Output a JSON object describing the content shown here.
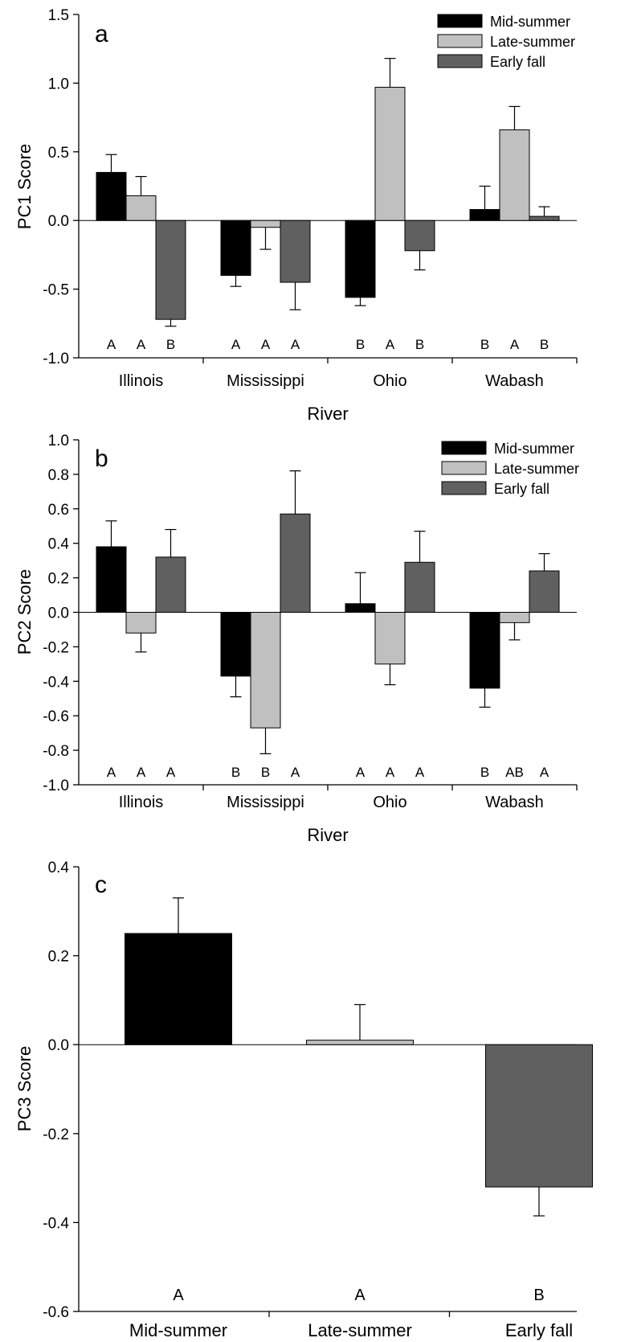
{
  "chart_data": [
    {
      "type": "bar",
      "panel_label": "a",
      "xlabel": "River",
      "ylabel": "PC1 Score",
      "ylim": [
        -1.0,
        1.5
      ],
      "yticks": [
        "-1.0",
        "-0.5",
        "0.0",
        "0.5",
        "1.0",
        "1.5"
      ],
      "categories": [
        "Illinois",
        "Mississippi",
        "Ohio",
        "Wabash"
      ],
      "series": [
        {
          "name": "Mid-summer",
          "values": [
            0.35,
            -0.4,
            -0.56,
            0.08
          ],
          "errors": [
            0.13,
            0.08,
            0.06,
            0.17
          ]
        },
        {
          "name": "Late-summer",
          "values": [
            0.18,
            -0.05,
            0.97,
            0.66
          ],
          "errors": [
            0.14,
            0.16,
            0.21,
            0.17
          ]
        },
        {
          "name": "Early fall",
          "values": [
            -0.72,
            -0.45,
            -0.22,
            0.03
          ],
          "errors": [
            0.05,
            0.2,
            0.14,
            0.07
          ]
        }
      ],
      "group_letters": [
        [
          "A",
          "A",
          "B"
        ],
        [
          "A",
          "A",
          "A"
        ],
        [
          "B",
          "A",
          "B"
        ],
        [
          "B",
          "A",
          "B"
        ]
      ],
      "legend": "top-right",
      "grid": false
    },
    {
      "type": "bar",
      "panel_label": "b",
      "xlabel": "River",
      "ylabel": "PC2 Score",
      "ylim": [
        -1.0,
        1.0
      ],
      "yticks": [
        "-1.0",
        "-0.8",
        "-0.6",
        "-0.4",
        "-0.2",
        "0.0",
        "0.2",
        "0.4",
        "0.6",
        "0.8",
        "1.0"
      ],
      "categories": [
        "Illinois",
        "Mississippi",
        "Ohio",
        "Wabash"
      ],
      "series": [
        {
          "name": "Mid-summer",
          "values": [
            0.38,
            -0.37,
            0.05,
            -0.44
          ],
          "errors": [
            0.15,
            0.12,
            0.18,
            0.11
          ]
        },
        {
          "name": "Late-summer",
          "values": [
            -0.12,
            -0.67,
            -0.3,
            -0.06
          ],
          "errors": [
            0.11,
            0.15,
            0.12,
            0.1
          ]
        },
        {
          "name": "Early fall",
          "values": [
            0.32,
            0.57,
            0.29,
            0.24
          ],
          "errors": [
            0.16,
            0.25,
            0.18,
            0.1
          ]
        }
      ],
      "group_letters": [
        [
          "A",
          "A",
          "A"
        ],
        [
          "B",
          "B",
          "A"
        ],
        [
          "A",
          "A",
          "A"
        ],
        [
          "B",
          "AB",
          "A"
        ]
      ],
      "legend": "top-right",
      "grid": false
    },
    {
      "type": "bar",
      "panel_label": "c",
      "xlabel": "",
      "ylabel": "PC3 Score",
      "ylim": [
        -0.6,
        0.4
      ],
      "yticks": [
        "-0.6",
        "-0.4",
        "-0.2",
        "0.0",
        "0.2",
        "0.4"
      ],
      "categories": [
        "Mid-summer",
        "Late-summer",
        "Early fall"
      ],
      "values": [
        0.25,
        0.01,
        -0.32
      ],
      "errors": [
        0.08,
        0.08,
        0.065
      ],
      "colors": [
        "#000000",
        "#c0c0c0",
        "#606060"
      ],
      "letters": [
        "A",
        "A",
        "B"
      ],
      "grid": false
    }
  ],
  "colors": {
    "Mid-summer": "#000000",
    "Late-summer": "#c0c0c0",
    "Early fall": "#606060"
  }
}
